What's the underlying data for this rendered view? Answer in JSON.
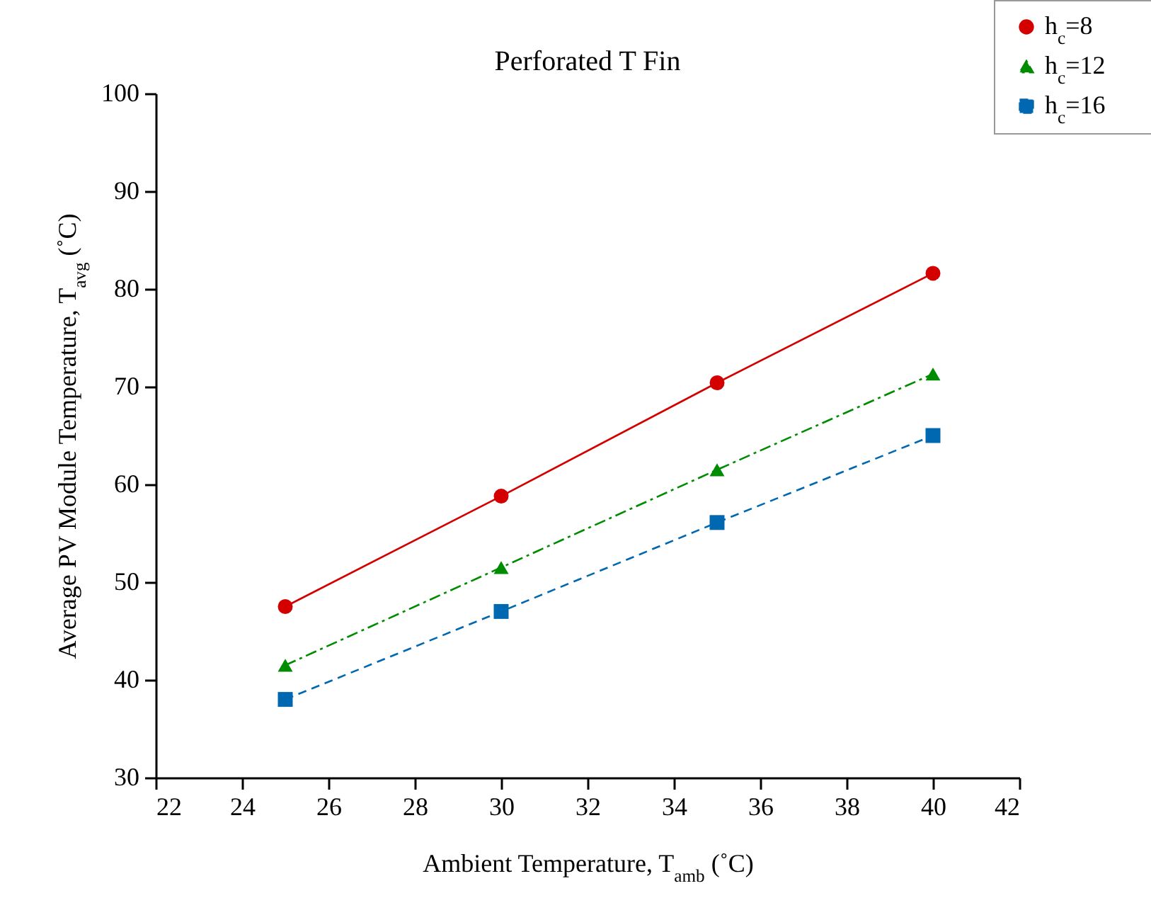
{
  "chart_data": {
    "type": "line",
    "title": "Perforated T Fin",
    "xlabel": "Ambient Temperature, T$_{amb}$ (˚C)",
    "ylabel": "Average PV Module Temperature, T$_{avg}$ (˚C)",
    "x": [
      25,
      30,
      35,
      40
    ],
    "series": [
      {
        "name": "h$_{c}$=8",
        "color": "#d40000",
        "marker": "circle",
        "line_style": "solid",
        "values": [
          47.5,
          58.8,
          70.4,
          81.6
        ]
      },
      {
        "name": "h$_{c}$=12",
        "color": "#008c00",
        "marker": "triangle",
        "line_style": "dashdot",
        "values": [
          41.5,
          51.5,
          61.5,
          71.3
        ]
      },
      {
        "name": "h$_{c}$=16",
        "color": "#0068b0",
        "marker": "square",
        "line_style": "dashed",
        "values": [
          38,
          47,
          56.1,
          65
        ]
      }
    ],
    "xlim": [
      22,
      42
    ],
    "xticks": [
      22,
      24,
      26,
      28,
      30,
      32,
      34,
      36,
      38,
      40,
      42
    ],
    "ylim": [
      30,
      100
    ],
    "yticks": [
      30,
      40,
      50,
      60,
      70,
      80,
      90,
      100
    ],
    "grid": false,
    "legend": "top right"
  }
}
